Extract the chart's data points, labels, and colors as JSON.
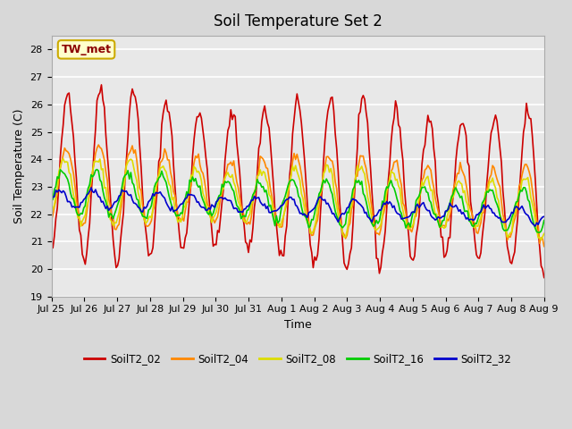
{
  "title": "Soil Temperature Set 2",
  "xlabel": "Time",
  "ylabel": "Soil Temperature (C)",
  "ylim": [
    19.0,
    28.5
  ],
  "yticks": [
    19.0,
    20.0,
    21.0,
    22.0,
    23.0,
    24.0,
    25.0,
    26.0,
    27.0,
    28.0
  ],
  "bg_color": "#e8e8e8",
  "plot_bg": "#e8e8e8",
  "grid_color": "white",
  "annotation_text": "TW_met",
  "annotation_bg": "#ffffcc",
  "annotation_edge": "#ccaa00",
  "annotation_text_color": "#8b0000",
  "series_colors": {
    "SoilT2_02": "#cc0000",
    "SoilT2_04": "#ff8800",
    "SoilT2_08": "#dddd00",
    "SoilT2_16": "#00cc00",
    "SoilT2_32": "#0000cc"
  },
  "legend_labels": [
    "SoilT2_02",
    "SoilT2_04",
    "SoilT2_08",
    "SoilT2_16",
    "SoilT2_32"
  ],
  "xtick_labels": [
    "Jul 25",
    "Jul 26",
    "Jul 27",
    "Jul 28",
    "Jul 29",
    "Jul 30",
    "Jul 31",
    "Aug 1",
    "Aug 2",
    "Aug 3",
    "Aug 4",
    "Aug 5",
    "Aug 6",
    "Aug 7",
    "Aug 8",
    "Aug 9"
  ],
  "xtick_positions": [
    0,
    1,
    2,
    3,
    4,
    5,
    6,
    7,
    8,
    9,
    10,
    11,
    12,
    13,
    14,
    15
  ],
  "n_points": 336,
  "days": 15,
  "line_width": 1.2
}
